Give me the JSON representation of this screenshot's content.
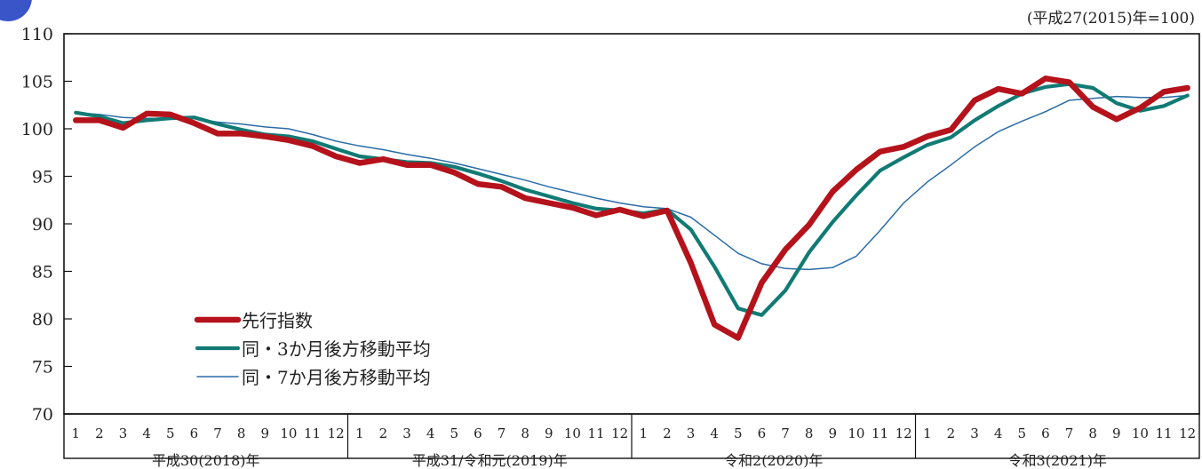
{
  "note": "(平成27(2015)年=100)",
  "chart_data": {
    "type": "line",
    "title": "",
    "xlabel": "",
    "ylabel": "",
    "ylim": [
      70,
      110
    ],
    "yticks": [
      110,
      105,
      100,
      95,
      90,
      85,
      80,
      75,
      70
    ],
    "grid": false,
    "legend_position": "lower-left",
    "months": [
      "1",
      "2",
      "3",
      "4",
      "5",
      "6",
      "7",
      "8",
      "9",
      "10",
      "11",
      "12"
    ],
    "years": [
      "平成30(2018)年",
      "平成31/令和元(2019)年",
      "令和2(2020)年",
      "令和3(2021)年"
    ],
    "series": [
      {
        "name": "先行指数",
        "color": "#b5121b",
        "style": "thick",
        "values": [
          100.9,
          100.9,
          100.1,
          101.6,
          101.5,
          100.6,
          99.5,
          99.5,
          99.2,
          98.8,
          98.2,
          97.1,
          96.4,
          96.8,
          96.2,
          96.2,
          95.4,
          94.2,
          93.9,
          92.7,
          92.2,
          91.7,
          90.9,
          91.5,
          90.8,
          91.4,
          85.9,
          79.4,
          78.0,
          83.8,
          87.3,
          89.9,
          93.4,
          95.7,
          97.6,
          98.1,
          99.2,
          99.9,
          103.0,
          104.2,
          103.7,
          105.3,
          104.9,
          102.3,
          101.0,
          102.2,
          103.9,
          104.3
        ]
      },
      {
        "name": "同・3か月後方移動平均",
        "color": "#117a74",
        "style": "medium",
        "values": [
          101.7,
          101.3,
          100.6,
          100.9,
          101.1,
          101.2,
          100.5,
          99.9,
          99.4,
          99.2,
          98.7,
          97.9,
          97.1,
          96.8,
          96.5,
          96.4,
          96.0,
          95.3,
          94.5,
          93.6,
          92.9,
          92.2,
          91.6,
          91.4,
          91.1,
          91.5,
          89.4,
          85.5,
          81.1,
          80.4,
          83.0,
          87.0,
          90.2,
          93.0,
          95.6,
          97.0,
          98.3,
          99.1,
          100.9,
          102.4,
          103.7,
          104.4,
          104.7,
          104.3,
          102.7,
          101.9,
          102.4,
          103.5
        ]
      },
      {
        "name": "同・7か月後方移動平均",
        "color": "#2a6ca6",
        "style": "thin",
        "values": [
          101.7,
          101.5,
          101.2,
          101.1,
          101.1,
          101.1,
          100.7,
          100.5,
          100.2,
          100.0,
          99.4,
          98.7,
          98.2,
          97.8,
          97.3,
          96.9,
          96.4,
          95.8,
          95.2,
          94.6,
          93.9,
          93.3,
          92.7,
          92.2,
          91.8,
          91.6,
          90.7,
          88.8,
          86.9,
          85.8,
          85.3,
          85.2,
          85.4,
          86.6,
          89.3,
          92.2,
          94.4,
          96.2,
          98.1,
          99.7,
          100.8,
          101.8,
          103.0,
          103.2,
          103.4,
          103.3,
          103.3,
          103.5
        ]
      }
    ]
  }
}
